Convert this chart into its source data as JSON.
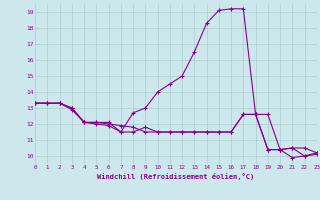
{
  "xlabel": "Windchill (Refroidissement éolien,°C)",
  "bg_color": "#cce8ec",
  "grid_color": "#aacccc",
  "line_color": "#880088",
  "xlim": [
    0,
    23
  ],
  "ylim": [
    9.5,
    19.5
  ],
  "xticks": [
    0,
    1,
    2,
    3,
    4,
    5,
    6,
    7,
    8,
    9,
    10,
    11,
    12,
    13,
    14,
    15,
    16,
    17,
    18,
    19,
    20,
    21,
    22,
    23
  ],
  "yticks": [
    10,
    11,
    12,
    13,
    14,
    15,
    16,
    17,
    18,
    19
  ],
  "series": [
    [
      13.3,
      13.3,
      13.3,
      13.0,
      12.1,
      12.1,
      12.0,
      11.9,
      11.8,
      11.5,
      11.5,
      11.5,
      11.5,
      11.5,
      11.5,
      11.5,
      11.5,
      12.6,
      12.6,
      10.4,
      10.4,
      10.5,
      10.0,
      10.1
    ],
    [
      13.3,
      13.3,
      13.3,
      13.0,
      12.1,
      12.0,
      11.9,
      11.5,
      11.5,
      11.8,
      11.5,
      11.5,
      11.5,
      11.5,
      11.5,
      11.5,
      11.5,
      12.6,
      12.6,
      10.4,
      10.4,
      10.5,
      10.5,
      10.2
    ],
    [
      13.3,
      13.3,
      13.3,
      12.9,
      12.1,
      12.1,
      12.1,
      11.5,
      12.7,
      13.0,
      14.0,
      14.5,
      15.0,
      16.5,
      18.3,
      19.1,
      19.2,
      19.2,
      12.6,
      12.6,
      10.4,
      9.9,
      10.0,
      10.2
    ]
  ]
}
